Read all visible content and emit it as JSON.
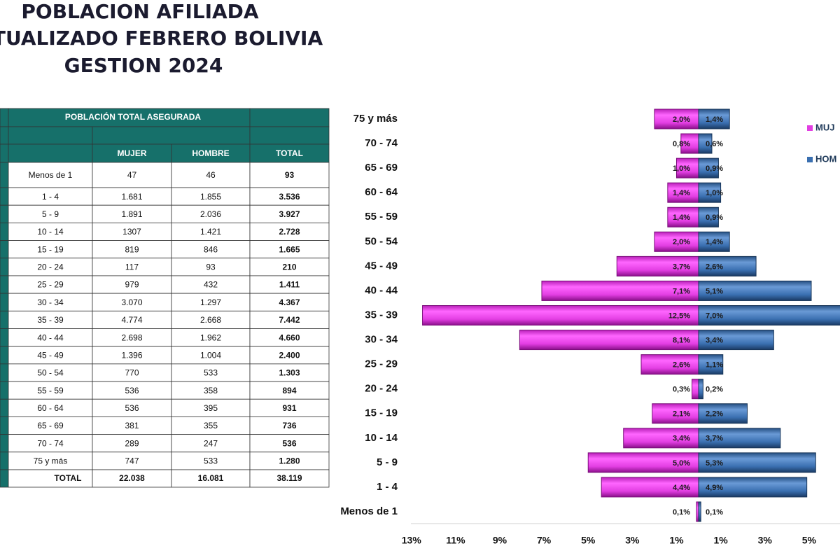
{
  "title": [
    "POBLACION AFILIADA",
    "TUALIZADO FEBRERO BOLIVIA",
    "GESTION 2024"
  ],
  "table": {
    "header": "POBLACIÓN  TOTAL ASEGURADA",
    "columns": [
      "MUJER",
      "HOMBRE",
      "TOTAL"
    ],
    "rows": [
      [
        "Menos de 1",
        "47",
        "46",
        "93"
      ],
      [
        "1 - 4",
        "1.681",
        "1.855",
        "3.536"
      ],
      [
        "5 - 9",
        "1.891",
        "2.036",
        "3.927"
      ],
      [
        "10 - 14",
        "1307",
        "1.421",
        "2.728"
      ],
      [
        "15 - 19",
        "819",
        "846",
        "1.665"
      ],
      [
        "20 - 24",
        "117",
        "93",
        "210"
      ],
      [
        "25 - 29",
        "979",
        "432",
        "1.411"
      ],
      [
        "30 - 34",
        "3.070",
        "1.297",
        "4.367"
      ],
      [
        "35 - 39",
        "4.774",
        "2.668",
        "7.442"
      ],
      [
        "40 - 44",
        "2.698",
        "1.962",
        "4.660"
      ],
      [
        "45 - 49",
        "1.396",
        "1.004",
        "2.400"
      ],
      [
        "50 - 54",
        "770",
        "533",
        "1.303"
      ],
      [
        "55 - 59",
        "536",
        "358",
        "894"
      ],
      [
        "60 - 64",
        "536",
        "395",
        "931"
      ],
      [
        "65 - 69",
        "381",
        "355",
        "736"
      ],
      [
        "70 - 74",
        "289",
        "247",
        "536"
      ],
      [
        "75 y más",
        "747",
        "533",
        "1.280"
      ]
    ],
    "total": [
      "TOTAL",
      "22.038",
      "16.081",
      "38.119"
    ]
  },
  "chart_data": {
    "type": "pyramid",
    "categories": [
      "Menos de 1",
      "1 - 4",
      "5 - 9",
      "10 - 14",
      "15 - 19",
      "20 - 24",
      "25 - 29",
      "30 - 34",
      "35 - 39",
      "40 - 44",
      "45 - 49",
      "50 - 54",
      "55 - 59",
      "60 - 64",
      "65 - 69",
      "70 - 74",
      "75 y más"
    ],
    "series": [
      {
        "name": "MUJ",
        "color": "#e23ee2",
        "side": "left",
        "values": [
          0.1,
          4.4,
          5.0,
          3.4,
          2.1,
          0.3,
          2.6,
          8.1,
          12.5,
          7.1,
          3.7,
          2.0,
          1.4,
          1.4,
          1.0,
          0.8,
          2.0
        ],
        "value_labels": [
          "0,1%",
          "4,4%",
          "5,0%",
          "3,4%",
          "2,1%",
          "0,3%",
          "2,6%",
          "8,1%",
          "12,5%",
          "7,1%",
          "3,7%",
          "2,0%",
          "1,4%",
          "1,4%",
          "1,0%",
          "0,8%",
          "2,0%"
        ]
      },
      {
        "name": "HOM",
        "color": "#3a6fb0",
        "side": "right",
        "values": [
          0.1,
          4.9,
          5.3,
          3.7,
          2.2,
          0.2,
          1.1,
          3.4,
          7.0,
          5.1,
          2.6,
          1.4,
          0.9,
          1.0,
          0.9,
          0.6,
          1.4
        ],
        "value_labels": [
          "0,1%",
          "4,9%",
          "5,3%",
          "3,7%",
          "2,2%",
          "0,2%",
          "1,1%",
          "3,4%",
          "7,0%",
          "5,1%",
          "2,6%",
          "1,4%",
          "0,9%",
          "1,0%",
          "0,9%",
          "0,6%",
          "1,4%"
        ]
      }
    ],
    "xlim": [
      -13.5,
      6.4
    ],
    "xticks": [
      {
        "value": -13,
        "label": "13%"
      },
      {
        "value": -11,
        "label": "11%"
      },
      {
        "value": -9,
        "label": "9%"
      },
      {
        "value": -7,
        "label": "7%"
      },
      {
        "value": -5,
        "label": "5%"
      },
      {
        "value": -3,
        "label": "3%"
      },
      {
        "value": -1,
        "label": "1%"
      },
      {
        "value": 1,
        "label": "1%"
      },
      {
        "value": 3,
        "label": "3%"
      },
      {
        "value": 5,
        "label": "5%"
      }
    ]
  }
}
